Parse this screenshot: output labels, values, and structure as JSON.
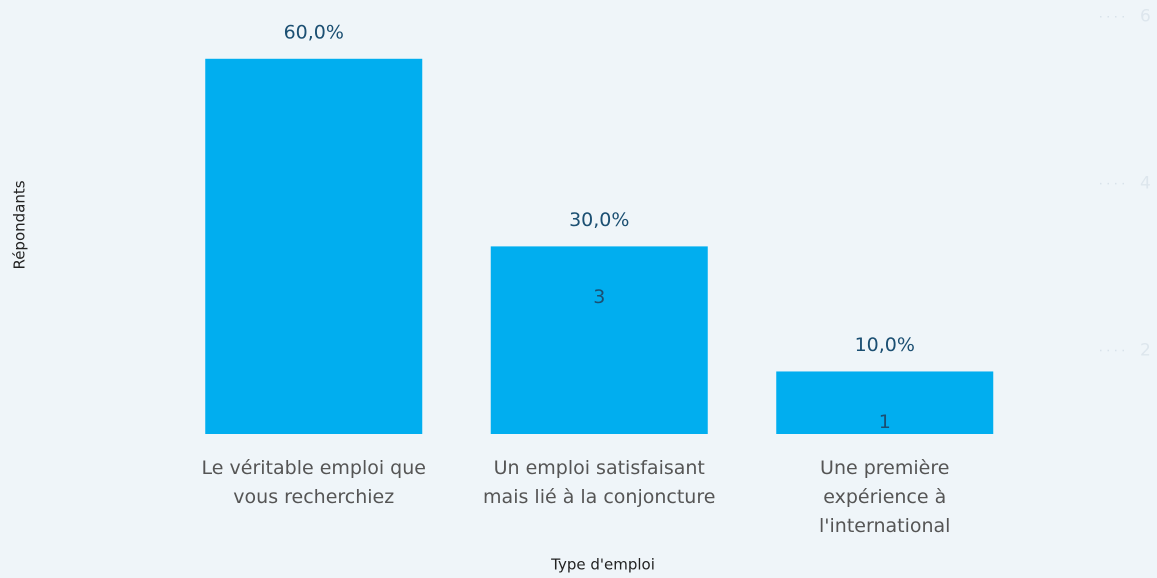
{
  "chart_data": {
    "type": "bar",
    "categories": [
      "Le véritable emploi que\nvous recherchiez",
      "Un emploi satisfaisant\nmais lié à la conjoncture",
      "Une première\nexpérience à\nl'international"
    ],
    "values": [
      6,
      3,
      1
    ],
    "value_labels": [
      null,
      "3",
      "1"
    ],
    "percent_labels": [
      "60,0%",
      "30,0%",
      "10,0%"
    ],
    "color": "#01aeef",
    "ylim": [
      0,
      6.94
    ],
    "y2lim": [
      1,
      6.2
    ],
    "y2ticks": [
      2,
      4,
      6
    ],
    "xlabel": "Type d'emploi",
    "ylabel": "Répondants"
  }
}
